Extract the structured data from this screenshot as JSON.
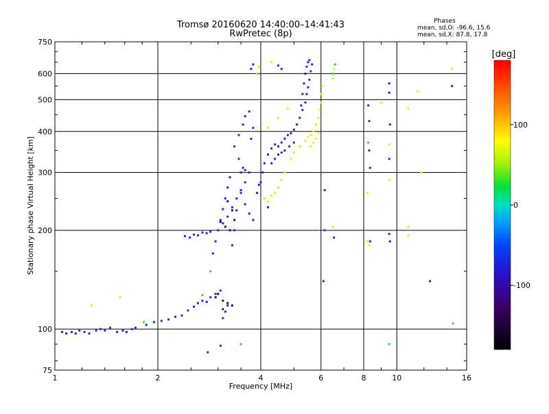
{
  "chart_data": {
    "type": "scatter",
    "title": "Tromsø 20160620 14:40:00–14:41:43",
    "subtitle": "RwPretec (8p)",
    "xlabel": "Frequency [MHz]",
    "ylabel": "Stationary phase Virtual Height [km]",
    "x_scale": "log",
    "y_scale": "log",
    "xlim": [
      1,
      16
    ],
    "ylim": [
      75,
      750
    ],
    "x_ticks": [
      1,
      2,
      4,
      6,
      8,
      10,
      16
    ],
    "x_tick_labels": [
      "1",
      "2",
      "4",
      "6",
      "8",
      "10",
      "16"
    ],
    "y_ticks": [
      75,
      100,
      200,
      300,
      400,
      500,
      600,
      750
    ],
    "y_tick_labels": [
      "75",
      "100",
      "200",
      "300",
      "400",
      "500",
      "600",
      "750"
    ],
    "grid_x": [
      2,
      4,
      6,
      8,
      10
    ],
    "grid_y": [
      100,
      200,
      300,
      400,
      500,
      600
    ],
    "grid": true,
    "phase_stats": {
      "heading": "Phases",
      "line_o": "mean, sd,O: -96.6, 15.6",
      "line_x": "mean, sd,X:  87.8, 17.8"
    },
    "colorbar": {
      "label": "[deg]",
      "range": [
        -180,
        180
      ],
      "ticks": [
        -100,
        0,
        100
      ],
      "tick_labels": [
        "-100",
        "0",
        "100"
      ],
      "placement": "right"
    },
    "series": [
      {
        "mode": "O",
        "color_value_deg": -100,
        "points": [
          [
            1.05,
            98
          ],
          [
            1.08,
            97
          ],
          [
            1.12,
            98
          ],
          [
            1.15,
            97
          ],
          [
            1.18,
            99
          ],
          [
            1.22,
            98
          ],
          [
            1.26,
            97
          ],
          [
            1.32,
            99
          ],
          [
            1.36,
            100
          ],
          [
            1.4,
            99
          ],
          [
            1.45,
            101
          ],
          [
            1.52,
            98
          ],
          [
            1.58,
            99
          ],
          [
            1.62,
            98
          ],
          [
            1.68,
            100
          ],
          [
            1.72,
            101
          ],
          [
            1.85,
            103
          ],
          [
            1.95,
            105
          ],
          [
            2.05,
            106
          ],
          [
            2.15,
            107
          ],
          [
            2.25,
            109
          ],
          [
            2.35,
            110
          ],
          [
            2.45,
            114
          ],
          [
            2.55,
            117
          ],
          [
            2.62,
            120
          ],
          [
            2.7,
            122
          ],
          [
            2.78,
            121
          ],
          [
            2.85,
            125
          ],
          [
            2.95,
            128
          ],
          [
            3.05,
            131
          ],
          [
            2.4,
            192
          ],
          [
            2.48,
            190
          ],
          [
            2.55,
            194
          ],
          [
            2.62,
            193
          ],
          [
            2.7,
            197
          ],
          [
            2.78,
            196
          ],
          [
            2.85,
            198
          ],
          [
            2.9,
            170
          ],
          [
            2.95,
            185
          ],
          [
            3.0,
            200
          ],
          [
            3.05,
            215
          ],
          [
            3.1,
            232
          ],
          [
            3.15,
            250
          ],
          [
            3.2,
            270
          ],
          [
            3.25,
            290
          ],
          [
            3.1,
            210
          ],
          [
            3.2,
            220
          ],
          [
            3.3,
            235
          ],
          [
            3.4,
            250
          ],
          [
            3.5,
            265
          ],
          [
            3.6,
            280
          ],
          [
            3.7,
            300
          ],
          [
            3.3,
            180
          ],
          [
            3.35,
            200
          ],
          [
            3.4,
            230
          ],
          [
            3.5,
            260
          ],
          [
            3.6,
            240
          ],
          [
            3.7,
            225
          ],
          [
            3.8,
            215
          ],
          [
            3.35,
            360
          ],
          [
            3.45,
            390
          ],
          [
            3.55,
            420
          ],
          [
            3.6,
            445
          ],
          [
            3.7,
            460
          ],
          [
            3.75,
            380
          ],
          [
            3.8,
            410
          ],
          [
            3.45,
            330
          ],
          [
            3.5,
            300
          ],
          [
            3.55,
            310
          ],
          [
            3.6,
            305
          ],
          [
            3.75,
            620
          ],
          [
            3.8,
            640
          ],
          [
            3.9,
            600
          ],
          [
            4.0,
            280
          ],
          [
            4.05,
            300
          ],
          [
            4.1,
            320
          ],
          [
            4.2,
            340
          ],
          [
            4.3,
            355
          ],
          [
            4.4,
            365
          ],
          [
            4.5,
            360
          ],
          [
            4.6,
            370
          ],
          [
            4.7,
            380
          ],
          [
            4.8,
            390
          ],
          [
            4.9,
            395
          ],
          [
            5.0,
            405
          ],
          [
            5.1,
            420
          ],
          [
            5.2,
            440
          ],
          [
            5.3,
            465
          ],
          [
            5.4,
            490
          ],
          [
            5.45,
            520
          ],
          [
            5.5,
            545
          ],
          [
            5.55,
            575
          ],
          [
            5.6,
            610
          ],
          [
            5.65,
            640
          ],
          [
            5.25,
            480
          ],
          [
            5.3,
            520
          ],
          [
            5.35,
            560
          ],
          [
            5.4,
            600
          ],
          [
            5.45,
            630
          ],
          [
            5.5,
            650
          ],
          [
            5.55,
            660
          ],
          [
            4.3,
            320
          ],
          [
            4.4,
            330
          ],
          [
            4.5,
            340
          ],
          [
            4.6,
            345
          ],
          [
            4.7,
            350
          ],
          [
            4.85,
            360
          ],
          [
            5.0,
            370
          ],
          [
            3.9,
            260
          ],
          [
            3.95,
            275
          ],
          [
            4.1,
            250
          ],
          [
            4.2,
            235
          ],
          [
            4.5,
            635
          ],
          [
            4.6,
            620
          ],
          [
            3.1,
            108
          ],
          [
            3.15,
            113
          ],
          [
            3.2,
            118
          ],
          [
            2.8,
            85
          ],
          [
            3.05,
            89
          ],
          [
            6.15,
            265
          ],
          [
            6.15,
            200
          ],
          [
            6.55,
            190
          ],
          [
            6.1,
            140
          ],
          [
            8.25,
            480
          ],
          [
            8.3,
            430
          ],
          [
            8.3,
            350
          ],
          [
            8.35,
            310
          ],
          [
            8.35,
            185
          ],
          [
            9.5,
            560
          ],
          [
            9.5,
            525
          ],
          [
            9.55,
            420
          ],
          [
            9.5,
            330
          ],
          [
            9.5,
            195
          ],
          [
            9.55,
            185
          ],
          [
            12.5,
            140
          ],
          [
            14.5,
            550
          ]
        ]
      },
      {
        "mode": "O-low",
        "color_value_deg": -130,
        "points": [
          [
            2.95,
            125
          ],
          [
            3.0,
            128
          ],
          [
            3.1,
            122
          ],
          [
            3.2,
            120
          ],
          [
            3.3,
            118
          ],
          [
            3.1,
            115
          ],
          [
            3.2,
            245
          ],
          [
            3.3,
            230
          ],
          [
            3.25,
            200
          ],
          [
            3.35,
            215
          ],
          [
            3.15,
            205
          ],
          [
            3.05,
            212
          ]
        ]
      },
      {
        "mode": "X",
        "color_value_deg": 100,
        "points": [
          [
            4.1,
            250
          ],
          [
            4.2,
            245
          ],
          [
            4.3,
            255
          ],
          [
            4.4,
            260
          ],
          [
            4.5,
            270
          ],
          [
            4.6,
            285
          ],
          [
            4.7,
            300
          ],
          [
            4.9,
            330
          ],
          [
            5.0,
            345
          ],
          [
            5.2,
            360
          ],
          [
            5.4,
            375
          ],
          [
            5.5,
            385
          ],
          [
            5.6,
            390
          ],
          [
            5.7,
            400
          ],
          [
            5.8,
            420
          ],
          [
            5.9,
            440
          ],
          [
            5.95,
            465
          ],
          [
            6.0,
            490
          ],
          [
            6.02,
            520
          ],
          [
            6.05,
            550
          ],
          [
            5.6,
            360
          ],
          [
            5.7,
            370
          ],
          [
            5.8,
            380
          ],
          [
            5.9,
            395
          ],
          [
            4.2,
            410
          ],
          [
            4.5,
            440
          ],
          [
            4.8,
            470
          ],
          [
            3.9,
            600
          ],
          [
            3.95,
            630
          ],
          [
            4.3,
            650
          ],
          [
            6.5,
            580
          ],
          [
            6.55,
            620
          ],
          [
            6.5,
            205
          ],
          [
            8.2,
            260
          ],
          [
            9.0,
            490
          ],
          [
            9.5,
            285
          ],
          [
            9.5,
            365
          ],
          [
            10.8,
            470
          ],
          [
            11.5,
            530
          ],
          [
            11.8,
            300
          ],
          [
            10.8,
            205
          ],
          [
            10.8,
            193
          ],
          [
            14.5,
            620
          ],
          [
            8.2,
            185
          ],
          [
            8.3,
            180
          ],
          [
            1.28,
            118
          ],
          [
            1.55,
            125
          ]
        ]
      },
      {
        "mode": "mixed",
        "color_value_deg": 20,
        "points": [
          [
            1.82,
            105
          ],
          [
            2.7,
            127
          ],
          [
            2.85,
            150
          ],
          [
            3.5,
            90
          ],
          [
            6.5,
            600
          ],
          [
            6.6,
            640
          ],
          [
            9.5,
            90
          ],
          [
            8.25,
            370
          ],
          [
            14.6,
            104
          ]
        ]
      }
    ]
  }
}
